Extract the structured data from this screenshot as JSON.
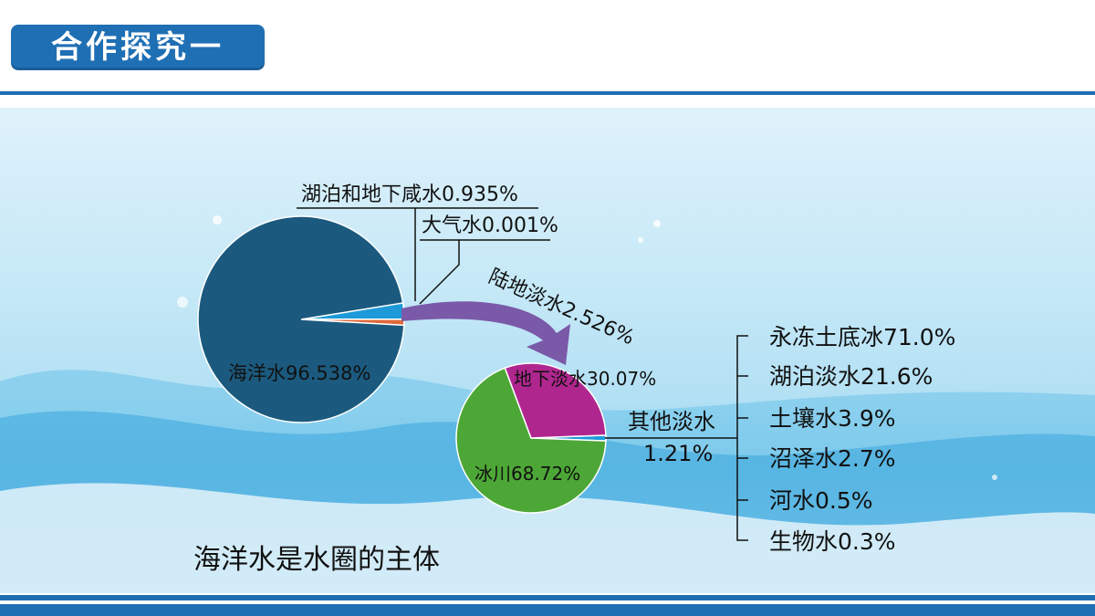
{
  "header": {
    "title": "合作探究一"
  },
  "footer": {
    "caption": "海洋水是水圈的主体"
  },
  "colors": {
    "ocean": "#1b5a7e",
    "saline_lake_ground": "#e0693a",
    "freshwater": "#1e9ad8",
    "atmosphere": "#f5d300",
    "groundwater": "#b0268f",
    "glacier": "#4da736",
    "other_fresh": "#1e9ad8",
    "arrow": "#7a5aa8",
    "accent": "#1f6fb4"
  },
  "chart_data": [
    {
      "type": "pie",
      "slices": [
        {
          "label": "海洋水",
          "value": 96.538,
          "text": "海洋水96.538%"
        },
        {
          "label": "湖泊和地下咸水",
          "value": 0.935,
          "text": "湖泊和地下咸水0.935%"
        },
        {
          "label": "大气水",
          "value": 0.001,
          "text": "大气水0.001%"
        },
        {
          "label": "陆地淡水",
          "value": 2.526,
          "text": "陆地淡水2.526%"
        }
      ]
    },
    {
      "type": "pie",
      "slices": [
        {
          "label": "冰川",
          "value": 68.72,
          "text": "冰川68.72%"
        },
        {
          "label": "地下淡水",
          "value": 30.07,
          "text": "地下淡水30.07%"
        },
        {
          "label": "其他淡水",
          "value": 1.21,
          "text_line1": "其他淡水",
          "text_line2": "1.21%"
        }
      ]
    },
    {
      "type": "table",
      "title": "其他淡水",
      "items": [
        {
          "label": "永冻土底冰",
          "value": 71.0,
          "text": "永冻土底冰71.0%"
        },
        {
          "label": "湖泊淡水",
          "value": 21.6,
          "text": "湖泊淡水21.6%"
        },
        {
          "label": "土壤水",
          "value": 3.9,
          "text": "土壤水3.9%"
        },
        {
          "label": "沼泽水",
          "value": 2.7,
          "text": "沼泽水2.7%"
        },
        {
          "label": "河水",
          "value": 0.5,
          "text": "河水0.5%"
        },
        {
          "label": "生物水",
          "value": 0.3,
          "text": "生物水0.3%"
        }
      ]
    }
  ]
}
